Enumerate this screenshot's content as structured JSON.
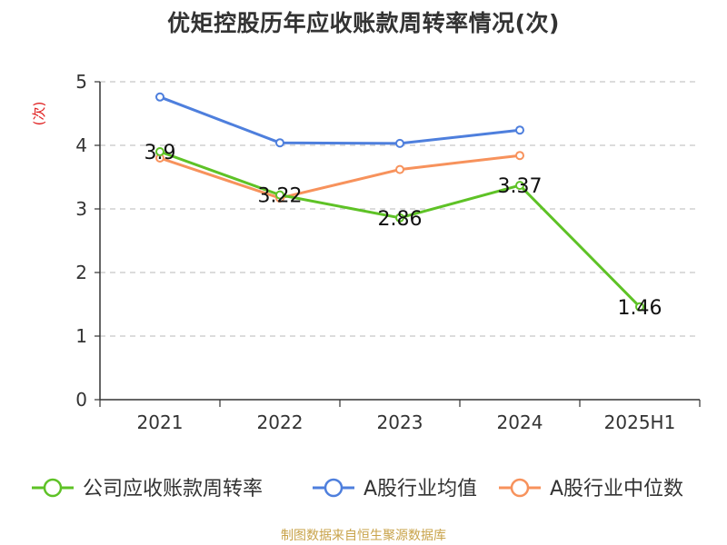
{
  "chart_data": {
    "type": "line",
    "title": "优矩控股历年应收账款周转率情况(次)",
    "ylabel": "(次)",
    "xlabel": "",
    "ylim": [
      0,
      5
    ],
    "yticks": [
      0,
      1,
      2,
      3,
      4,
      5
    ],
    "grid": true,
    "legend_position": "bottom",
    "categories": [
      "2021",
      "2022",
      "2023",
      "2024",
      "2025H1"
    ],
    "series": [
      {
        "name": "公司应收账款周转率",
        "color": "#5ec226",
        "values": [
          3.9,
          3.22,
          2.86,
          3.37,
          1.46
        ],
        "data_labels": [
          "3.9",
          "3.22",
          "2.86",
          "3.37",
          "1.46"
        ]
      },
      {
        "name": "A股行业均值",
        "color": "#4e7fdd",
        "values": [
          4.76,
          4.04,
          4.03,
          4.24,
          null
        ]
      },
      {
        "name": "A股行业中位数",
        "color": "#f7925c",
        "values": [
          3.8,
          3.17,
          3.62,
          3.84,
          null
        ]
      }
    ]
  },
  "footer": {
    "source": "制图数据来自恒生聚源数据库"
  }
}
